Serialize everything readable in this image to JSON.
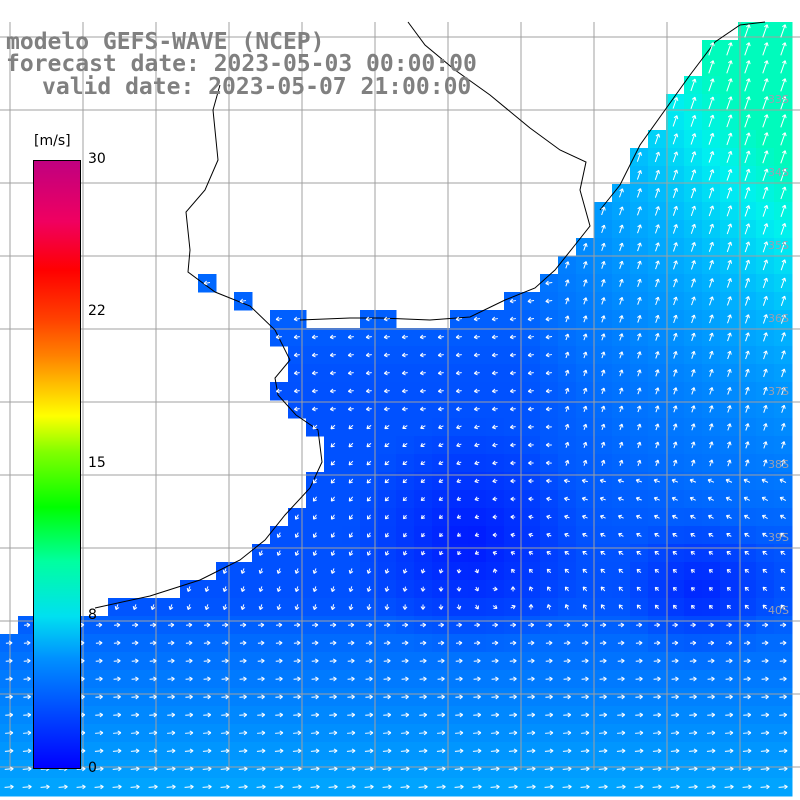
{
  "header": {
    "model": "modelo GEFS-WAVE (NCEP)",
    "forecast": "forecast date: 2023-05-03 00:00:00",
    "valid": "valid date: 2023-05-07 21:00:00"
  },
  "colorbar": {
    "unit": "[m/s]",
    "ticks": [
      "30",
      "22",
      "15",
      "8",
      "0"
    ],
    "min": 0,
    "max": 30
  },
  "lat_labels": [
    "33S",
    "34S",
    "35S",
    "36S",
    "37S",
    "38S",
    "39S",
    "40S"
  ],
  "colors": {
    "land": "#ffffff",
    "grid": "#a0a0a0",
    "coast": "#000000",
    "arrow": "#ffffff",
    "title": "#808080"
  }
}
